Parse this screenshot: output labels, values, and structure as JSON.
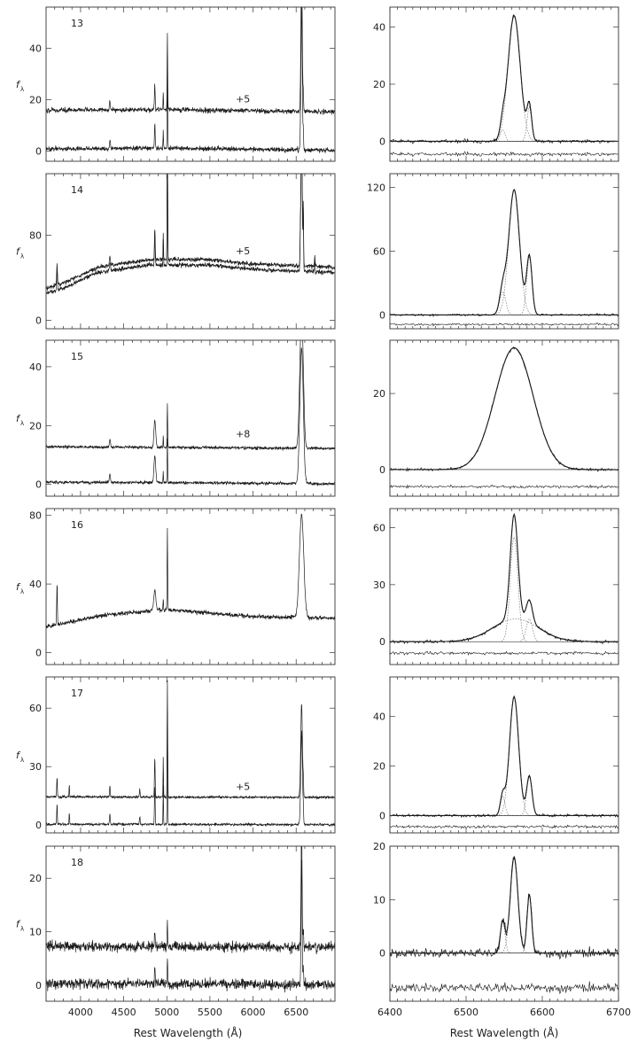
{
  "figure": {
    "left_xlabel": "Rest Wavelength (Å)",
    "right_xlabel": "Rest Wavelength (Å)",
    "ylabel": "f",
    "ylabel_sub": "λ"
  },
  "colors": {
    "spectrum": "#1a1a1a",
    "axis": "#333333",
    "component": "#666666"
  },
  "chart_data": [
    {
      "type": "line",
      "panel": "left",
      "object_id": "13",
      "xlim": [
        3600,
        6950
      ],
      "ylim": [
        -4,
        56
      ],
      "xticks": [
        4000,
        4500,
        5000,
        5500,
        6000,
        6500
      ],
      "yticks": [
        0,
        20,
        40
      ],
      "offset_label": "+5",
      "offset_label_x": 5800,
      "offset_label_y": 19,
      "offset": 15,
      "noise": 0.9,
      "continuum": [
        [
          3600,
          0.8
        ],
        [
          4400,
          1.0
        ],
        [
          5000,
          1.1
        ],
        [
          6000,
          0.6
        ],
        [
          6950,
          0.2
        ]
      ],
      "lines": [
        [
          4340,
          3,
          6
        ],
        [
          4861,
          10,
          4
        ],
        [
          4959,
          7,
          3
        ],
        [
          5007,
          30,
          3
        ],
        [
          6563,
          56,
          8
        ],
        [
          6583,
          7,
          3
        ]
      ]
    },
    {
      "type": "line",
      "panel": "right",
      "object_id": "13",
      "xlim": [
        6400,
        6700
      ],
      "ylim": [
        -7,
        47
      ],
      "xticks": [
        6400,
        6500,
        6600,
        6700
      ],
      "yticks": [
        0,
        20,
        40
      ],
      "residual_offset": -4.5,
      "noise": 0.6,
      "lines": [
        [
          6563,
          44,
          8
        ],
        [
          6548,
          4,
          3
        ],
        [
          6583,
          12,
          3
        ]
      ]
    },
    {
      "type": "line",
      "panel": "left",
      "object_id": "14",
      "xlim": [
        3600,
        6950
      ],
      "ylim": [
        -8,
        138
      ],
      "xticks": [
        4000,
        4500,
        5000,
        5500,
        6000,
        6500
      ],
      "yticks": [
        0,
        80
      ],
      "offset_label": "+5",
      "offset_label_x": 5800,
      "offset_label_y": 62,
      "offset": 5,
      "noise": 2.0,
      "continuum": [
        [
          3600,
          25
        ],
        [
          3800,
          30
        ],
        [
          4200,
          45
        ],
        [
          4800,
          52
        ],
        [
          5500,
          52
        ],
        [
          6000,
          48
        ],
        [
          6950,
          45
        ]
      ],
      "lines": [
        [
          3727,
          20,
          5
        ],
        [
          4340,
          8,
          6
        ],
        [
          4861,
          30,
          4
        ],
        [
          4959,
          25,
          3
        ],
        [
          5007,
          128,
          3
        ],
        [
          6548,
          20,
          3
        ],
        [
          6563,
          132,
          8
        ],
        [
          6583,
          55,
          3
        ],
        [
          6716,
          10,
          4
        ]
      ]
    },
    {
      "type": "line",
      "panel": "right",
      "object_id": "14",
      "xlim": [
        6400,
        6700
      ],
      "ylim": [
        -13,
        133
      ],
      "xticks": [
        6400,
        6500,
        6600,
        6700
      ],
      "yticks": [
        0,
        60,
        120
      ],
      "residual_offset": -9,
      "noise": 1.0,
      "lines": [
        [
          6563,
          118,
          7
        ],
        [
          6548,
          22,
          4
        ],
        [
          6583,
          55,
          3.5
        ]
      ]
    },
    {
      "type": "line",
      "panel": "left",
      "object_id": "15",
      "xlim": [
        3600,
        6950
      ],
      "ylim": [
        -4,
        49
      ],
      "xticks": [
        4000,
        4500,
        5000,
        5500,
        6000,
        6500
      ],
      "yticks": [
        0,
        20,
        40
      ],
      "offset_label": "+8",
      "offset_label_x": 5800,
      "offset_label_y": 16,
      "offset": 12,
      "noise": 0.5,
      "continuum": [
        [
          3600,
          0.8
        ],
        [
          5000,
          0.6
        ],
        [
          6950,
          0.2
        ]
      ],
      "lines": [
        [
          4340,
          3,
          6
        ],
        [
          4861,
          9,
          10
        ],
        [
          4959,
          4,
          3
        ],
        [
          5007,
          15,
          3
        ],
        [
          6563,
          46,
          20
        ]
      ]
    },
    {
      "type": "line",
      "panel": "right",
      "object_id": "15",
      "xlim": [
        6400,
        6700
      ],
      "ylim": [
        -7,
        34
      ],
      "xticks": [
        6400,
        6500,
        6600,
        6700
      ],
      "yticks": [
        0,
        20
      ],
      "residual_offset": -4.5,
      "noise": 0.35,
      "lines": [
        [
          6563,
          32,
          25
        ]
      ]
    },
    {
      "type": "line",
      "panel": "left",
      "object_id": "16",
      "xlim": [
        3600,
        6950
      ],
      "ylim": [
        -7,
        84
      ],
      "xticks": [
        4000,
        4500,
        5000,
        5500,
        6000,
        6500
      ],
      "yticks": [
        0,
        40,
        80
      ],
      "offset": 0,
      "noise": 1.2,
      "continuum": [
        [
          3600,
          15
        ],
        [
          3800,
          17
        ],
        [
          4300,
          22
        ],
        [
          5000,
          25
        ],
        [
          5500,
          23
        ],
        [
          6000,
          21
        ],
        [
          6950,
          20
        ]
      ],
      "lines": [
        [
          3727,
          25,
          4
        ],
        [
          4861,
          12,
          12
        ],
        [
          4959,
          6,
          3
        ],
        [
          5007,
          48,
          3
        ],
        [
          6563,
          60,
          25
        ]
      ]
    },
    {
      "type": "line",
      "panel": "right",
      "object_id": "16",
      "xlim": [
        6400,
        6700
      ],
      "ylim": [
        -12,
        70
      ],
      "xticks": [
        6400,
        6500,
        6600,
        6700
      ],
      "yticks": [
        0,
        30,
        60
      ],
      "residual_offset": -6,
      "noise": 0.8,
      "lines": [
        [
          6563,
          55,
          5
        ],
        [
          6565,
          12,
          30
        ],
        [
          6583,
          12,
          4
        ]
      ]
    },
    {
      "type": "line",
      "panel": "left",
      "object_id": "17",
      "xlim": [
        3600,
        6950
      ],
      "ylim": [
        -4,
        76
      ],
      "xticks": [
        4000,
        4500,
        5000,
        5500,
        6000,
        6500
      ],
      "yticks": [
        0,
        30,
        60
      ],
      "offset_label": "+5",
      "offset_label_x": 5800,
      "offset_label_y": 18,
      "offset": 14,
      "noise": 0.6,
      "continuum": [
        [
          3600,
          0.5
        ],
        [
          6950,
          0.2
        ]
      ],
      "lines": [
        [
          3727,
          10,
          4
        ],
        [
          3869,
          6,
          3
        ],
        [
          4340,
          6,
          4
        ],
        [
          4686,
          4,
          4
        ],
        [
          4861,
          20,
          4
        ],
        [
          4959,
          20,
          3
        ],
        [
          5007,
          60,
          3
        ],
        [
          6563,
          48,
          10
        ],
        [
          6583,
          6,
          3
        ]
      ]
    },
    {
      "type": "line",
      "panel": "right",
      "object_id": "17",
      "xlim": [
        6400,
        6700
      ],
      "ylim": [
        -7,
        56
      ],
      "xticks": [
        6400,
        6500,
        6600,
        6700
      ],
      "yticks": [
        0,
        20,
        40
      ],
      "residual_offset": -4.5,
      "noise": 0.5,
      "lines": [
        [
          6563,
          48,
          6
        ],
        [
          6548,
          8,
          3
        ],
        [
          6583,
          16,
          3.5
        ]
      ]
    },
    {
      "type": "line",
      "panel": "left",
      "object_id": "18",
      "xlim": [
        3600,
        6950
      ],
      "ylim": [
        -3,
        26
      ],
      "xticks": [
        4000,
        4500,
        5000,
        5500,
        6000,
        6500
      ],
      "yticks": [
        0,
        10,
        20
      ],
      "offset": 7,
      "noise": 0.9,
      "continuum": [
        [
          3600,
          0.3
        ],
        [
          6950,
          0.1
        ]
      ],
      "lines": [
        [
          4861,
          3,
          4
        ],
        [
          5007,
          5,
          3
        ],
        [
          6563,
          24,
          6
        ],
        [
          6583,
          4,
          3
        ]
      ]
    },
    {
      "type": "line",
      "panel": "right",
      "object_id": "18",
      "xlim": [
        6400,
        6700
      ],
      "ylim": [
        -9,
        20
      ],
      "xticks": [
        6400,
        6500,
        6600,
        6700
      ],
      "yticks": [
        0,
        10,
        20
      ],
      "residual_offset": -6.5,
      "noise": 0.9,
      "lines": [
        [
          6563,
          18,
          5
        ],
        [
          6548,
          6,
          3
        ],
        [
          6583,
          11,
          3
        ]
      ]
    }
  ]
}
